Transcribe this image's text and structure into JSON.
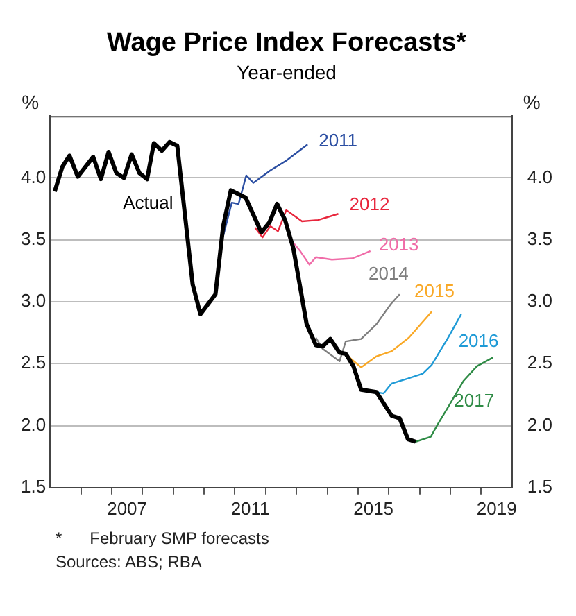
{
  "chart_data": {
    "type": "line",
    "title": "Wage Price Index Forecasts*",
    "subtitle": "Year-ended",
    "ylabel": "%",
    "y2label": "%",
    "xlim": [
      2005,
      2020
    ],
    "xticks": [
      {
        "value": 2006,
        "label": null
      },
      {
        "value": 2007,
        "label": null
      },
      {
        "value": 2007.5,
        "label": "2007"
      },
      {
        "value": 2008,
        "label": null
      },
      {
        "value": 2009,
        "label": null
      },
      {
        "value": 2010,
        "label": null
      },
      {
        "value": 2011,
        "label": null
      },
      {
        "value": 2011.5,
        "label": "2011"
      },
      {
        "value": 2012,
        "label": null
      },
      {
        "value": 2013,
        "label": null
      },
      {
        "value": 2014,
        "label": null
      },
      {
        "value": 2015,
        "label": null
      },
      {
        "value": 2015.5,
        "label": "2015"
      },
      {
        "value": 2016,
        "label": null
      },
      {
        "value": 2017,
        "label": null
      },
      {
        "value": 2018,
        "label": null
      },
      {
        "value": 2019,
        "label": null
      },
      {
        "value": 2019.5,
        "label": "2019"
      }
    ],
    "ylim": [
      1.5,
      4.5
    ],
    "yticks": [
      {
        "value": 1.5,
        "label": "1.5"
      },
      {
        "value": 2,
        "label": "2.0"
      },
      {
        "value": 2.5,
        "label": "2.5"
      },
      {
        "value": 3,
        "label": "3.0"
      },
      {
        "value": 3.5,
        "label": "3.5"
      },
      {
        "value": 4,
        "label": "4.0"
      }
    ],
    "y2lim": [
      1.5,
      4.5
    ],
    "y2ticks": [
      {
        "value": 1.5,
        "label": "1.5"
      },
      {
        "value": 2,
        "label": "2.0"
      },
      {
        "value": 2.5,
        "label": "2.5"
      },
      {
        "value": 3,
        "label": "3.0"
      },
      {
        "value": 3.5,
        "label": "3.5"
      },
      {
        "value": 4,
        "label": "4.0"
      }
    ],
    "grid": "y",
    "legend": false,
    "marker": "none",
    "line_style": "solid",
    "series": [
      {
        "name": "Actual",
        "color": "#000000",
        "x": [
          2005.15,
          2005.4,
          2005.63,
          2005.9,
          2006.4,
          2006.65,
          2006.9,
          2007.15,
          2007.4,
          2007.65,
          2007.9,
          2008.15,
          2008.37,
          2008.63,
          2008.88,
          2009.13,
          2009.63,
          2009.88,
          2010.37,
          2010.62,
          2010.87,
          2011.35,
          2011.86,
          2012.12,
          2012.37,
          2012.63,
          2012.9,
          2013.33,
          2013.63,
          2013.85,
          2014.1,
          2014.4,
          2014.6,
          2014.85,
          2015.1,
          2015.6,
          2016.09,
          2016.35,
          2016.62,
          2016.87
        ],
        "values": [
          3.89,
          4.09,
          4.18,
          4.01,
          4.17,
          3.99,
          4.21,
          4.04,
          4.0,
          4.19,
          4.04,
          3.99,
          4.28,
          4.22,
          4.29,
          4.26,
          3.14,
          2.9,
          3.06,
          3.61,
          3.9,
          3.84,
          3.56,
          3.64,
          3.79,
          3.66,
          3.43,
          2.82,
          2.65,
          2.64,
          2.7,
          2.59,
          2.58,
          2.48,
          2.29,
          2.27,
          2.08,
          2.06,
          1.89,
          1.87
        ]
      },
      {
        "name": "2011",
        "color": "#2b4ea2",
        "x": [
          2010.63,
          2010.9,
          2011.12,
          2011.37,
          2011.6,
          2012.15,
          2012.67,
          2013.36
        ],
        "values": [
          3.54,
          3.8,
          3.79,
          4.02,
          3.96,
          4.06,
          4.14,
          4.27
        ]
      },
      {
        "name": "2012",
        "color": "#e8263c",
        "x": [
          2011.65,
          2011.9,
          2012.15,
          2012.4,
          2012.67,
          2013.18,
          2013.7,
          2014.36
        ],
        "values": [
          3.6,
          3.52,
          3.61,
          3.57,
          3.74,
          3.65,
          3.66,
          3.71
        ]
      },
      {
        "name": "2013",
        "color": "#f06ca8",
        "x": [
          2012.75,
          2013.12,
          2013.42,
          2013.63,
          2014.15,
          2014.82,
          2015.4
        ],
        "values": [
          3.52,
          3.41,
          3.3,
          3.36,
          3.34,
          3.35,
          3.41
        ]
      },
      {
        "name": "2014",
        "color": "#7f7f7f",
        "x": [
          2013.63,
          2013.85,
          2014.4,
          2014.6,
          2015.1,
          2015.6,
          2016.06,
          2016.35
        ],
        "values": [
          2.71,
          2.62,
          2.52,
          2.68,
          2.7,
          2.82,
          2.98,
          3.06
        ]
      },
      {
        "name": "2015",
        "color": "#f9a825",
        "x": [
          2014.58,
          2015.1,
          2015.6,
          2016.09,
          2016.65,
          2017.39
        ],
        "values": [
          2.58,
          2.47,
          2.56,
          2.6,
          2.71,
          2.92
        ]
      },
      {
        "name": "2016",
        "color": "#1e9ad6",
        "x": [
          2015.6,
          2015.83,
          2016.09,
          2016.62,
          2017.1,
          2017.39,
          2017.9,
          2018.35
        ],
        "values": [
          2.27,
          2.26,
          2.34,
          2.38,
          2.42,
          2.49,
          2.7,
          2.9
        ]
      },
      {
        "name": "2017",
        "color": "#2e8b45",
        "x": [
          2016.62,
          2016.87,
          2017.36,
          2017.61,
          2017.9,
          2018.42,
          2018.86,
          2019.38
        ],
        "values": [
          1.89,
          1.87,
          1.91,
          2.02,
          2.14,
          2.36,
          2.48,
          2.55
        ]
      }
    ],
    "annotations": [
      "*      February SMP forecasts",
      "Sources: ABS; RBA"
    ]
  }
}
